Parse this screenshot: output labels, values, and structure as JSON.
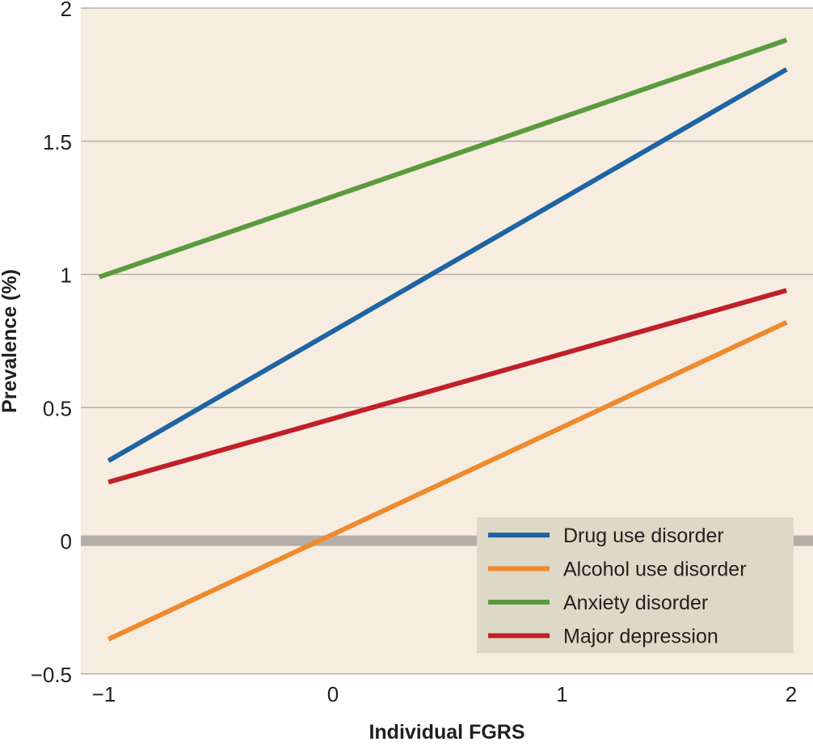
{
  "chart_data": {
    "type": "line",
    "xlabel": "Individual FGRS",
    "ylabel": "Prevalence (%)",
    "xlim": [
      -1.1,
      2.1
    ],
    "ylim": [
      -0.5,
      2
    ],
    "x_ticks": [
      {
        "value": -1,
        "label": "−1"
      },
      {
        "value": 0,
        "label": "0"
      },
      {
        "value": 1,
        "label": "1"
      },
      {
        "value": 2,
        "label": "2"
      }
    ],
    "y_ticks": [
      {
        "value": -0.5,
        "label": "−0.5"
      },
      {
        "value": 0,
        "label": "0"
      },
      {
        "value": 0.5,
        "label": "0.5"
      },
      {
        "value": 1,
        "label": "1"
      },
      {
        "value": 1.5,
        "label": "1.5"
      },
      {
        "value": 2,
        "label": "2"
      }
    ],
    "grid": true,
    "zero_line": true,
    "legend_position": "bottom-right",
    "series": [
      {
        "name": "Drug use disorder",
        "color": "#1f64a3",
        "x": [
          -0.98,
          1.98
        ],
        "y": [
          0.3,
          1.77
        ]
      },
      {
        "name": "Alcohol use disorder",
        "color": "#ee8a2f",
        "x": [
          -0.98,
          1.98
        ],
        "y": [
          -0.37,
          0.82
        ]
      },
      {
        "name": "Anxiety disorder",
        "color": "#5b9a3e",
        "x": [
          -1.02,
          1.98
        ],
        "y": [
          0.99,
          1.88
        ]
      },
      {
        "name": "Major depression",
        "color": "#c0202a",
        "x": [
          -0.98,
          1.98
        ],
        "y": [
          0.22,
          0.94
        ]
      }
    ],
    "colors": {
      "plot_background": "#f6ede0",
      "legend_background": "#ded8c6",
      "gridline": "#b8b1a8",
      "zero_line": "#b4aea8"
    }
  }
}
